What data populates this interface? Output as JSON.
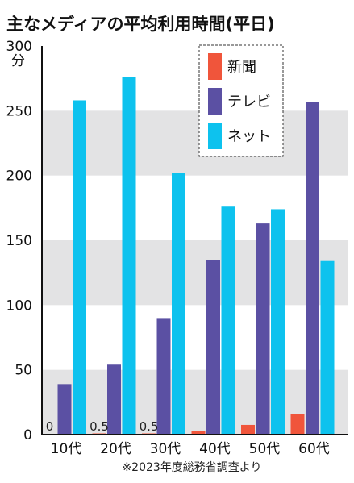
{
  "chart_data": {
    "type": "bar",
    "title": "主なメディアの平均利用時間(平日)",
    "unit": "分",
    "categories": [
      "10代",
      "20代",
      "30代",
      "40代",
      "50代",
      "60代"
    ],
    "series": [
      {
        "name": "新聞",
        "color": "#f0553b",
        "values": [
          0,
          0.5,
          0.5,
          2.5,
          7.5,
          16
        ]
      },
      {
        "name": "テレビ",
        "color": "#5b50a3",
        "values": [
          39,
          54,
          90,
          135,
          163,
          257
        ]
      },
      {
        "name": "ネット",
        "color": "#0dc2ee",
        "values": [
          258,
          276,
          202,
          176,
          174,
          134
        ]
      }
    ],
    "data_labels": [
      {
        "category": "10代",
        "text": "0"
      },
      {
        "category": "20代",
        "text": "0.5"
      },
      {
        "category": "30代",
        "text": "0.5"
      }
    ],
    "ylim": [
      0,
      300
    ],
    "yticks": [
      0,
      50,
      100,
      150,
      200,
      250,
      300
    ],
    "grid": "alternating horizontal bands",
    "legend_position": "top-right",
    "source": "※2023年度総務省調査より"
  }
}
